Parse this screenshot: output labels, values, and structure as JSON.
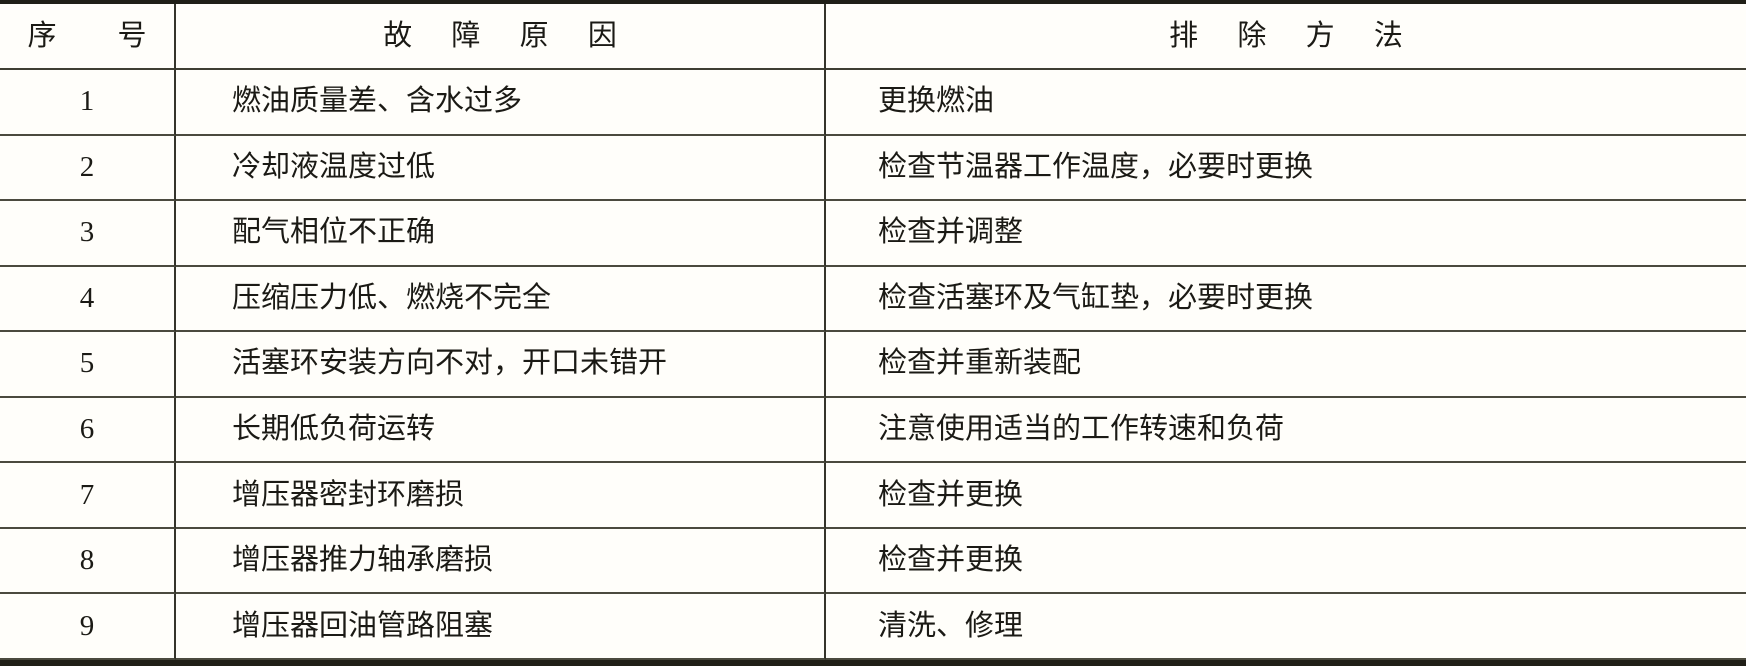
{
  "table": {
    "headers": {
      "serial": "序　号",
      "cause": "故 障 原 因",
      "remedy": "排 除 方 法"
    },
    "rows": [
      {
        "no": "1",
        "cause": "燃油质量差、含水过多",
        "remedy": "更换燃油"
      },
      {
        "no": "2",
        "cause": "冷却液温度过低",
        "remedy": "检查节温器工作温度，必要时更换"
      },
      {
        "no": "3",
        "cause": "配气相位不正确",
        "remedy": "检查并调整"
      },
      {
        "no": "4",
        "cause": "压缩压力低、燃烧不完全",
        "remedy": "检查活塞环及气缸垫，必要时更换"
      },
      {
        "no": "5",
        "cause": "活塞环安装方向不对，开口未错开",
        "remedy": "检查并重新装配"
      },
      {
        "no": "6",
        "cause": "长期低负荷运转",
        "remedy": "注意使用适当的工作转速和负荷"
      },
      {
        "no": "7",
        "cause": "增压器密封环磨损",
        "remedy": "检查并更换"
      },
      {
        "no": "8",
        "cause": "增压器推力轴承磨损",
        "remedy": "检查并更换"
      },
      {
        "no": "9",
        "cause": "增压器回油管路阻塞",
        "remedy": "清洗、修理"
      }
    ]
  }
}
